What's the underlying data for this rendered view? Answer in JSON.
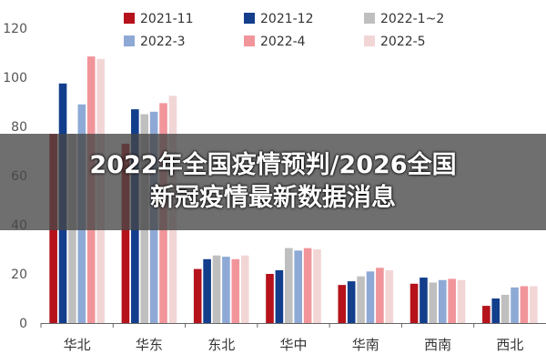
{
  "banner": {
    "line1": "2022年全国疫情预判/2026全国",
    "line2": "新冠疫情最新数据消息"
  },
  "chart_data": {
    "type": "bar",
    "categories": [
      "华北",
      "华东",
      "东北",
      "华中",
      "华南",
      "西南",
      "西北"
    ],
    "series": [
      {
        "name": "2021-11",
        "color": "#B5121B",
        "values": [
          77,
          73,
          22,
          20,
          15.5,
          16,
          7
        ]
      },
      {
        "name": "2021-12",
        "color": "#123E8C",
        "values": [
          97.5,
          87,
          26,
          21.5,
          17,
          18.5,
          10
        ]
      },
      {
        "name": "2022-1~2",
        "color": "#BFBFBF",
        "values": [
          77,
          85,
          27.5,
          30.5,
          19,
          16.5,
          11.5
        ]
      },
      {
        "name": "2022-3",
        "color": "#8EA9D6",
        "values": [
          89,
          86,
          27,
          29.5,
          21,
          17.5,
          14.5
        ]
      },
      {
        "name": "2022-4",
        "color": "#F1959B",
        "values": [
          108.5,
          89.5,
          26,
          30.5,
          22.5,
          18,
          15
        ]
      },
      {
        "name": "2022-5",
        "color": "#F2D6D6",
        "values": [
          107.5,
          92.5,
          27.5,
          30,
          21.5,
          17.5,
          15
        ]
      }
    ],
    "yticks": [
      0,
      20,
      40,
      60,
      80,
      100,
      120
    ],
    "ylim": [
      0,
      120
    ],
    "legend_placement": "top",
    "grid": false
  }
}
